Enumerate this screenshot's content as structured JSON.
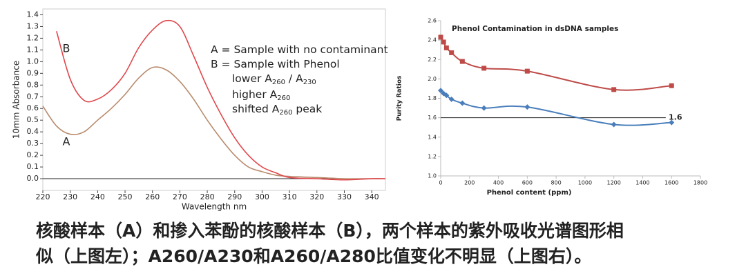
{
  "chart_data": [
    {
      "type": "line",
      "xlabel": "Wavelength nm",
      "ylabel": "10mm Absorbance",
      "x": [
        220,
        225,
        230,
        235,
        240,
        245,
        250,
        255,
        260,
        265,
        270,
        275,
        280,
        285,
        290,
        295,
        300,
        305,
        310,
        320,
        330,
        340,
        345
      ],
      "series": [
        {
          "name": "A",
          "color": "#b88a6c",
          "values": [
            0.62,
            0.45,
            0.38,
            0.4,
            0.5,
            0.6,
            0.72,
            0.86,
            0.95,
            0.93,
            0.83,
            0.68,
            0.5,
            0.34,
            0.2,
            0.1,
            0.06,
            0.03,
            0.02,
            0.01,
            0.0,
            0.0,
            0.0
          ]
        },
        {
          "name": "B",
          "color": "#e0474c",
          "values": [
            null,
            1.26,
            0.85,
            0.67,
            0.68,
            0.76,
            0.9,
            1.12,
            1.27,
            1.35,
            1.3,
            1.05,
            0.78,
            0.55,
            0.35,
            0.2,
            0.1,
            0.05,
            0.01,
            0.0,
            -0.01,
            0.0,
            0.0
          ]
        }
      ],
      "notes": [
        [
          "A = Sample with no contaminant"
        ],
        [
          "B = Sample with Phenol"
        ],
        [
          "lower A",
          "260",
          " / A",
          "230"
        ],
        [
          "higher A",
          "260"
        ],
        [
          "shifted A",
          "260",
          " peak"
        ]
      ],
      "xlim": [
        220,
        345
      ],
      "ylim": [
        -0.1,
        1.45
      ],
      "xticks": [
        220,
        230,
        240,
        250,
        260,
        270,
        280,
        290,
        300,
        310,
        320,
        330,
        340
      ],
      "yticks": [
        {
          "value": 0,
          "label": "0.0"
        },
        0.1,
        0.2,
        0.3,
        0.4,
        0.5,
        0.6,
        0.7,
        0.8,
        0.9,
        {
          "value": 1,
          "label": "1.0"
        },
        1.1,
        1.2,
        1.3,
        1.4
      ]
    },
    {
      "type": "line",
      "title": "Phenol Contamination in dsDNA samples",
      "xlabel": "Phenol content (ppm)",
      "ylabel": "Purity Ratios",
      "x": [
        0,
        20,
        40,
        75,
        150,
        300,
        600,
        1200,
        1600
      ],
      "series": [
        {
          "name": "A260/A230",
          "color": "#be4b48",
          "marker": "square",
          "values": [
            2.43,
            2.38,
            2.32,
            2.27,
            2.18,
            2.11,
            2.08,
            1.89,
            1.93
          ]
        },
        {
          "name": "A260/A280",
          "color": "#4a7ebb",
          "marker": "diamond",
          "values": [
            1.88,
            1.85,
            1.83,
            1.79,
            1.75,
            1.7,
            1.71,
            1.53,
            1.55
          ]
        }
      ],
      "reference_line": 1.6,
      "xlim": [
        0,
        1800
      ],
      "ylim": [
        1.0,
        2.6
      ],
      "xticks": [
        0,
        200,
        400,
        600,
        800,
        1000,
        1200,
        1400,
        1600,
        1800
      ],
      "yticks": [
        {
          "value": 1,
          "label": "1.0"
        },
        1.2,
        1.4,
        1.6,
        1.8,
        {
          "value": 2,
          "label": "2.0"
        },
        2.2,
        2.4,
        2.6
      ]
    }
  ],
  "caption": [
    "核酸样本（A）和掺入苯酚的核酸样本（B），两个样本的紫外吸收光谱图形相",
    "似（上图左）；A260/A230和A260/A280比值变化不明显（上图右）。"
  ]
}
